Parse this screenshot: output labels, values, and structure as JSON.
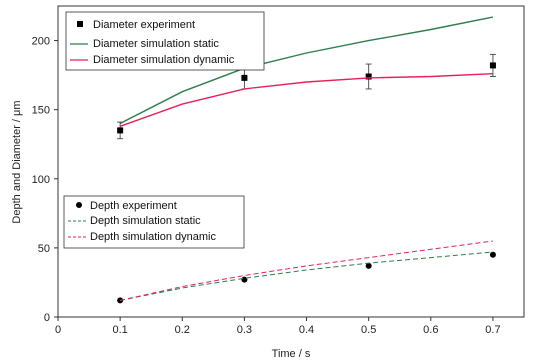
{
  "chart_data": {
    "type": "line",
    "xlabel": "Time / s",
    "ylabel": "Depth and Diameter / μm",
    "xlim": [
      0,
      0.75
    ],
    "ylim": [
      0,
      225
    ],
    "xticks": [
      0,
      0.1,
      0.2,
      0.3,
      0.4,
      0.5,
      0.6,
      0.7
    ],
    "xtick_labels": [
      "0",
      "0.1",
      "0.2",
      "0.3",
      "0.4",
      "0.5",
      "0.6",
      "0.7"
    ],
    "yticks": [
      0,
      50,
      100,
      150,
      200
    ],
    "ytick_labels": [
      "0",
      "50",
      "100",
      "150",
      "200"
    ],
    "grid": false,
    "series": [
      {
        "name": "Diameter experiment",
        "kind": "scatter",
        "marker": "square",
        "color": "#000000",
        "x": [
          0.1,
          0.3,
          0.5,
          0.7
        ],
        "y": [
          135,
          173,
          174,
          182
        ],
        "err": [
          6,
          8,
          9,
          8
        ]
      },
      {
        "name": "Diameter simulation static",
        "kind": "line",
        "dash": "solid",
        "color": "#2e7d4f",
        "x": [
          0.1,
          0.2,
          0.3,
          0.4,
          0.5,
          0.6,
          0.7
        ],
        "y": [
          140,
          163,
          180,
          191,
          200,
          208,
          217
        ]
      },
      {
        "name": "Diameter simulation dynamic",
        "kind": "line",
        "dash": "solid",
        "color": "#e8205a",
        "x": [
          0.1,
          0.2,
          0.3,
          0.4,
          0.5,
          0.6,
          0.7
        ],
        "y": [
          138,
          154,
          165,
          170,
          173,
          174,
          176
        ]
      },
      {
        "name": "Depth experiment",
        "kind": "scatter",
        "marker": "circle",
        "color": "#000000",
        "x": [
          0.1,
          0.3,
          0.5,
          0.7
        ],
        "y": [
          12,
          27,
          37,
          45
        ],
        "err": [
          0,
          0,
          0,
          0
        ]
      },
      {
        "name": "Depth simulation static",
        "kind": "line",
        "dash": "dashed",
        "color": "#2e7d4f",
        "x": [
          0.1,
          0.2,
          0.3,
          0.4,
          0.5,
          0.6,
          0.7
        ],
        "y": [
          12,
          21,
          28,
          34,
          39,
          43,
          47
        ]
      },
      {
        "name": "Depth simulation dynamic",
        "kind": "line",
        "dash": "dashed",
        "color": "#e8205a",
        "x": [
          0.1,
          0.2,
          0.3,
          0.4,
          0.5,
          0.6,
          0.7
        ],
        "y": [
          12,
          22,
          30,
          37,
          43,
          49,
          55
        ]
      }
    ],
    "legends": [
      {
        "placement": "top-left",
        "entries": [
          "Diameter experiment",
          "Diameter simulation static",
          "Diameter simulation dynamic"
        ]
      },
      {
        "placement": "center-left",
        "entries": [
          "Depth experiment",
          "Depth simulation static",
          "Depth simulation dynamic"
        ]
      }
    ]
  }
}
